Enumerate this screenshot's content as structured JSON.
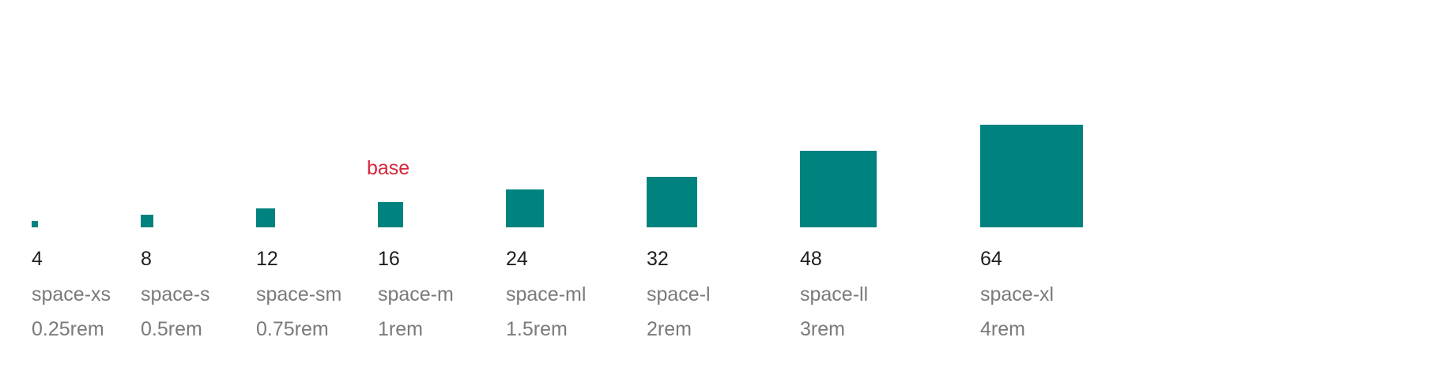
{
  "colors": {
    "swatch": "#00837f",
    "base_label": "#d7263d",
    "value_text": "#1f1f1f",
    "meta_text": "#7a7a7a"
  },
  "base_label": "base",
  "tokens": [
    {
      "px": "4",
      "name": "space-xs",
      "rem": "0.25rem",
      "size": 4,
      "is_base": false
    },
    {
      "px": "8",
      "name": "space-s",
      "rem": "0.5rem",
      "size": 8,
      "is_base": false
    },
    {
      "px": "12",
      "name": "space-sm",
      "rem": "0.75rem",
      "size": 12,
      "is_base": false
    },
    {
      "px": "16",
      "name": "space-m",
      "rem": "1rem",
      "size": 16,
      "is_base": true
    },
    {
      "px": "24",
      "name": "space-ml",
      "rem": "1.5rem",
      "size": 24,
      "is_base": false
    },
    {
      "px": "32",
      "name": "space-l",
      "rem": "2rem",
      "size": 32,
      "is_base": false
    },
    {
      "px": "48",
      "name": "space-ll",
      "rem": "3rem",
      "size": 48,
      "is_base": false
    },
    {
      "px": "64",
      "name": "space-xl",
      "rem": "4rem",
      "size": 64,
      "is_base": false
    }
  ]
}
